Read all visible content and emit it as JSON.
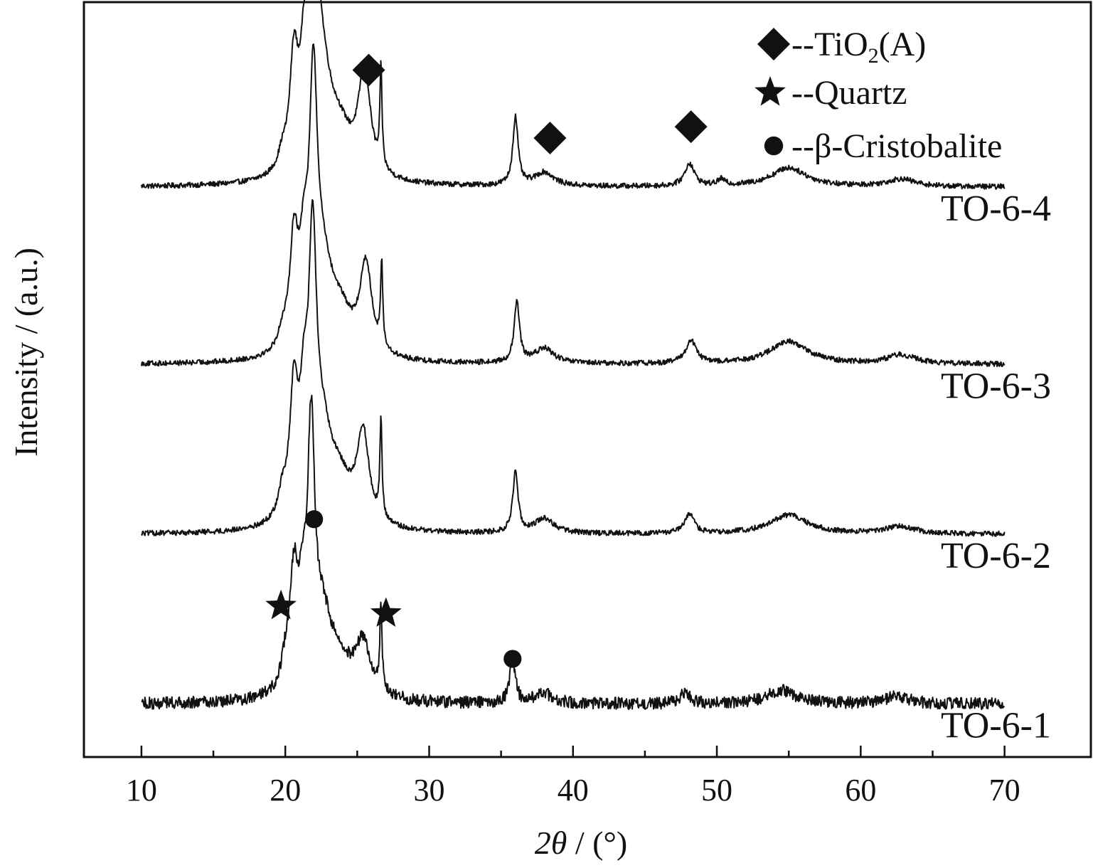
{
  "chart_data": {
    "type": "line",
    "title": "",
    "xlabel": "2θ / (°)",
    "xlabel_parts": {
      "var": "2θ",
      "unit": " / (°)"
    },
    "ylabel": "Intensity / (a.u.)",
    "xlim": [
      6,
      76
    ],
    "x_ticks": [
      10,
      20,
      30,
      40,
      50,
      60,
      70
    ],
    "x_tick_labels": [
      "10",
      "20",
      "30",
      "40",
      "50",
      "60",
      "70"
    ],
    "x_minor_step": 5,
    "y_ticks_shown": false,
    "grid": false,
    "stacked_offset": true,
    "line_color": "#111111",
    "legend": {
      "placement": "top-right",
      "entries": [
        {
          "marker": "diamond",
          "text": "--TiO2(A)",
          "parts": {
            "pre": "--TiO",
            "sub": "2",
            "post": "(A)"
          }
        },
        {
          "marker": "star",
          "text": "--Quartz"
        },
        {
          "marker": "circle",
          "text": "--β-Cristobalite"
        }
      ]
    },
    "series": [
      {
        "name": "TO-6-4",
        "baseline_level": 0.755,
        "noise": 0.0035,
        "peaks": [
          {
            "x": 19.8,
            "h": 0.02,
            "w": 0.35
          },
          {
            "x": 20.6,
            "h": 0.14,
            "w": 0.35
          },
          {
            "x": 21.3,
            "h": 0.1,
            "w": 0.35
          },
          {
            "x": 21.95,
            "h": 0.38,
            "w": 0.33
          },
          {
            "x": 22.6,
            "h": 0.11,
            "w": 0.8
          },
          {
            "x": 23.8,
            "h": 0.05,
            "w": 1.0
          },
          {
            "x": 25.5,
            "h": 0.14,
            "w": 0.5
          },
          {
            "x": 26.65,
            "h": 0.13,
            "w": 0.09
          },
          {
            "x": 36.0,
            "h": 0.09,
            "w": 0.22
          },
          {
            "x": 38.0,
            "h": 0.018,
            "w": 0.8
          },
          {
            "x": 48.1,
            "h": 0.03,
            "w": 0.4
          },
          {
            "x": 50.3,
            "h": 0.008,
            "w": 0.3
          },
          {
            "x": 55.0,
            "h": 0.025,
            "w": 1.5
          },
          {
            "x": 62.8,
            "h": 0.01,
            "w": 1.2
          }
        ]
      },
      {
        "name": "TO-6-3",
        "baseline_level": 0.52,
        "noise": 0.0035,
        "peaks": [
          {
            "x": 19.8,
            "h": 0.02,
            "w": 0.35
          },
          {
            "x": 20.6,
            "h": 0.14,
            "w": 0.35
          },
          {
            "x": 21.3,
            "h": 0.1,
            "w": 0.35
          },
          {
            "x": 21.95,
            "h": 0.32,
            "w": 0.33
          },
          {
            "x": 22.6,
            "h": 0.1,
            "w": 0.8
          },
          {
            "x": 23.8,
            "h": 0.05,
            "w": 1.0
          },
          {
            "x": 25.6,
            "h": 0.12,
            "w": 0.5
          },
          {
            "x": 26.7,
            "h": 0.11,
            "w": 0.09
          },
          {
            "x": 36.1,
            "h": 0.08,
            "w": 0.22
          },
          {
            "x": 38.0,
            "h": 0.02,
            "w": 0.8
          },
          {
            "x": 48.2,
            "h": 0.03,
            "w": 0.45
          },
          {
            "x": 55.0,
            "h": 0.03,
            "w": 1.6
          },
          {
            "x": 62.8,
            "h": 0.012,
            "w": 1.2
          }
        ]
      },
      {
        "name": "TO-6-2",
        "baseline_level": 0.295,
        "noise": 0.0035,
        "peaks": [
          {
            "x": 19.8,
            "h": 0.03,
            "w": 0.35
          },
          {
            "x": 20.6,
            "h": 0.16,
            "w": 0.35
          },
          {
            "x": 21.3,
            "h": 0.12,
            "w": 0.35
          },
          {
            "x": 21.9,
            "h": 0.33,
            "w": 0.33
          },
          {
            "x": 22.6,
            "h": 0.1,
            "w": 0.8
          },
          {
            "x": 23.8,
            "h": 0.05,
            "w": 1.0
          },
          {
            "x": 25.4,
            "h": 0.12,
            "w": 0.5
          },
          {
            "x": 26.65,
            "h": 0.13,
            "w": 0.09
          },
          {
            "x": 36.0,
            "h": 0.08,
            "w": 0.22
          },
          {
            "x": 38.0,
            "h": 0.02,
            "w": 0.8
          },
          {
            "x": 48.1,
            "h": 0.025,
            "w": 0.4
          },
          {
            "x": 55.0,
            "h": 0.025,
            "w": 1.6
          },
          {
            "x": 62.8,
            "h": 0.01,
            "w": 1.2
          }
        ]
      },
      {
        "name": "TO-6-1",
        "baseline_level": 0.07,
        "noise": 0.008,
        "peaks": [
          {
            "x": 20.0,
            "h": 0.03,
            "w": 0.35
          },
          {
            "x": 20.6,
            "h": 0.14,
            "w": 0.35
          },
          {
            "x": 21.2,
            "h": 0.09,
            "w": 0.35
          },
          {
            "x": 21.8,
            "h": 0.32,
            "w": 0.3
          },
          {
            "x": 22.6,
            "h": 0.09,
            "w": 0.8
          },
          {
            "x": 23.8,
            "h": 0.04,
            "w": 1.0
          },
          {
            "x": 25.4,
            "h": 0.07,
            "w": 0.6
          },
          {
            "x": 26.65,
            "h": 0.12,
            "w": 0.09
          },
          {
            "x": 35.8,
            "h": 0.06,
            "w": 0.22
          },
          {
            "x": 37.9,
            "h": 0.015,
            "w": 0.7
          },
          {
            "x": 47.8,
            "h": 0.015,
            "w": 0.4
          },
          {
            "x": 54.5,
            "h": 0.018,
            "w": 1.2
          },
          {
            "x": 62.5,
            "h": 0.01,
            "w": 1.0
          }
        ]
      }
    ],
    "annotations": [
      {
        "marker": "diamond",
        "x": 25.8,
        "level": 0.91
      },
      {
        "marker": "diamond",
        "x": 38.4,
        "level": 0.82
      },
      {
        "marker": "diamond",
        "x": 48.2,
        "level": 0.835
      },
      {
        "marker": "circle",
        "x": 22.0,
        "level": 0.315
      },
      {
        "marker": "star",
        "x": 19.7,
        "level": 0.2
      },
      {
        "marker": "star",
        "x": 27.0,
        "level": 0.19
      },
      {
        "marker": "circle",
        "x": 35.8,
        "level": 0.13
      }
    ]
  }
}
